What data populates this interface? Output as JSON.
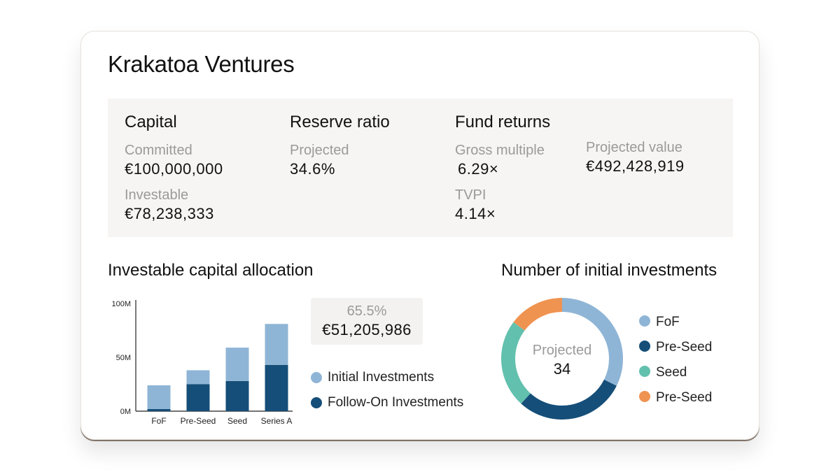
{
  "header": {
    "title": "Krakatoa Ventures"
  },
  "stats": {
    "capital": {
      "heading": "Capital",
      "committed_label": "Committed",
      "committed_value": "€100,000,000",
      "investable_label": "Investable",
      "investable_value": "€78,238,333"
    },
    "reserve": {
      "heading": "Reserve ratio",
      "projected_label": "Projected",
      "projected_value": "34.6%"
    },
    "returns": {
      "heading": "Fund returns",
      "gross_label": "Gross multiple",
      "gross_value": "6.29×",
      "tvpi_label": "TVPI",
      "tvpi_value": "4.14×",
      "projected_label": "Projected value",
      "projected_value": "€492,428,919"
    }
  },
  "allocation": {
    "title": "Investable capital allocation",
    "tooltip": {
      "percent": "65.5%",
      "amount": "€51,205,986"
    },
    "legend": [
      {
        "label": "Initial Investments",
        "color": "#8fb5d6"
      },
      {
        "label": "Follow-On Investments",
        "color": "#154e78"
      }
    ]
  },
  "investments": {
    "title": "Number of initial investments",
    "center_label": "Projected",
    "center_value": "34"
  },
  "chart_data": [
    {
      "type": "bar",
      "stacked": true,
      "title": "Investable capital allocation",
      "categories": [
        "FoF",
        "Pre-Seed",
        "Seed",
        "Series A"
      ],
      "series": [
        {
          "name": "Follow-On Investments",
          "values": [
            2,
            25,
            28,
            43
          ],
          "color": "#154e78"
        },
        {
          "name": "Initial Investments",
          "values": [
            22,
            13,
            31,
            38
          ],
          "color": "#8fb5d6"
        }
      ],
      "yticks": [
        "0M",
        "50M",
        "100M"
      ],
      "ylim": [
        0,
        100
      ],
      "units": "M"
    },
    {
      "type": "pie",
      "donut": true,
      "title": "Number of initial investments",
      "labels": [
        "FoF",
        "Pre-Seed",
        "Seed",
        "Pre-Seed"
      ],
      "values": [
        11,
        10,
        8,
        5
      ],
      "colors": [
        "#8fb5d6",
        "#154e78",
        "#62c0ae",
        "#ef9351"
      ],
      "total": 34
    }
  ]
}
